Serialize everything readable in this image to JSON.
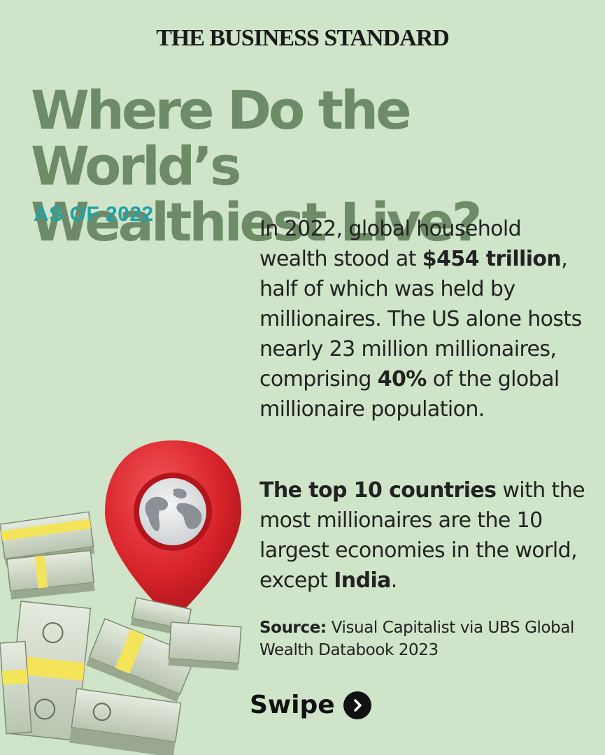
{
  "masthead": "THE BUSINESS STANDARD",
  "title_line1": "Where Do the World’s",
  "title_line2": "Wealthiest Live?",
  "subtitle": "AS OF 2022",
  "paragraph1": {
    "part1": "In 2022, global household wealth stood at ",
    "bold1": "$454 trillion",
    "part2": ", half of which was held by millionaires. The US alone hosts nearly 23 million millionaires, comprising ",
    "bold2": "40%",
    "part3": " of the global millionaire population."
  },
  "paragraph2": {
    "bold1": "The top 10 countries",
    "part1": " with the most millionaires are the 10 largest economies in the world, except ",
    "bold2": "India",
    "part2": "."
  },
  "source": {
    "label": "Source:",
    "text": " Visual Capitalist via UBS Global Wealth Databook 2023"
  },
  "swipe_label": "Swipe",
  "colors": {
    "background": "#cfe4c9",
    "title": "#6e8b68",
    "subtitle": "#1fa3a8",
    "pin": "#d8232a"
  }
}
